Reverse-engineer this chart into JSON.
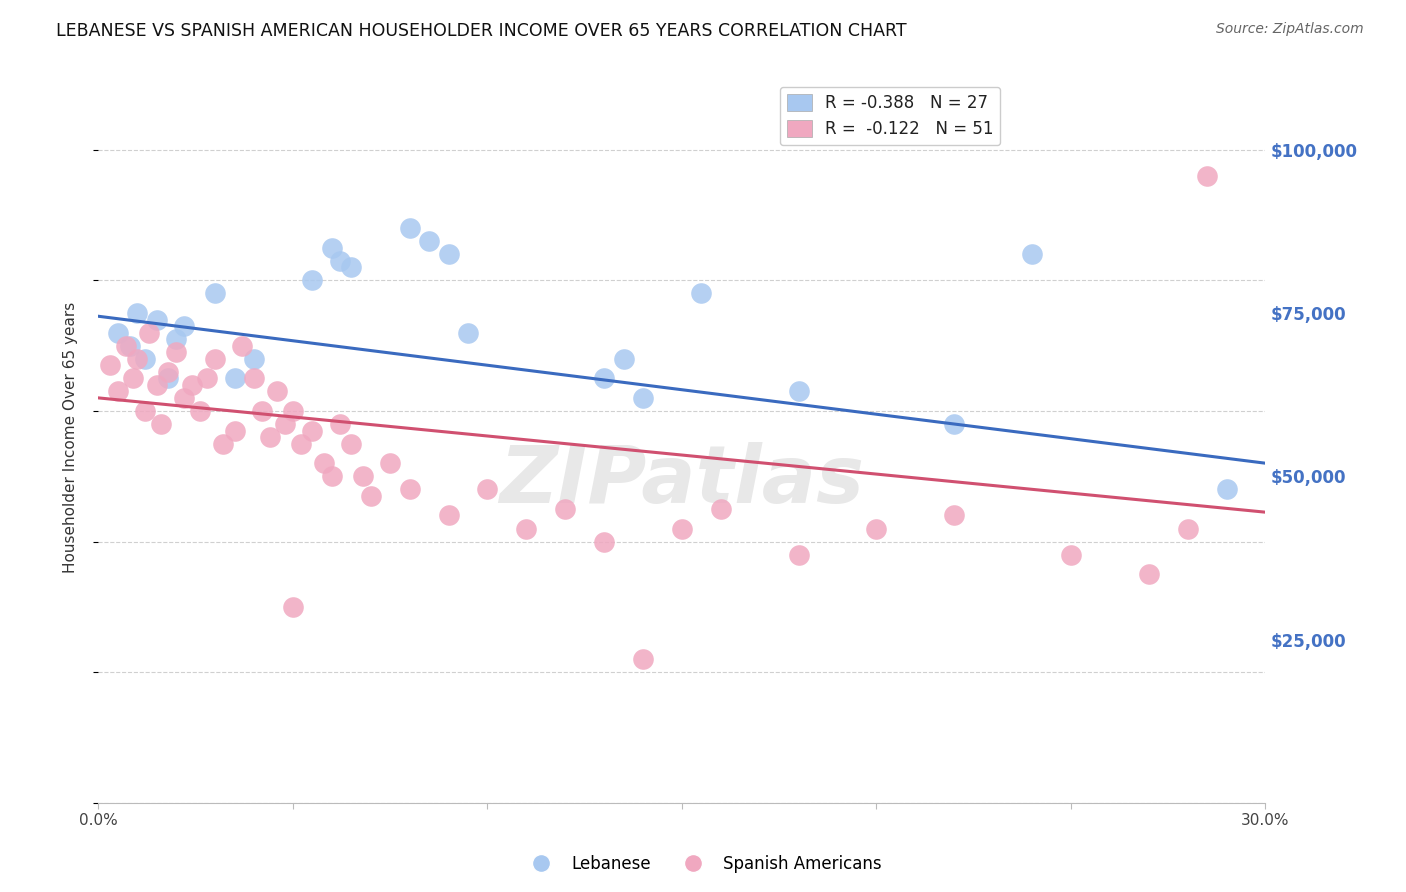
{
  "title": "LEBANESE VS SPANISH AMERICAN HOUSEHOLDER INCOME OVER 65 YEARS CORRELATION CHART",
  "source": "Source: ZipAtlas.com",
  "ylabel": "Householder Income Over 65 years",
  "watermark": "ZIPatlas",
  "legend_entries": [
    {
      "label": "Lebanese",
      "color": "#a8c8f0",
      "line_color": "#3a6abf",
      "R": -0.388,
      "N": 27
    },
    {
      "label": "Spanish Americans",
      "color": "#f0a8c0",
      "line_color": "#d05070",
      "R": -0.122,
      "N": 51
    }
  ],
  "ytick_values": [
    25000,
    50000,
    75000,
    100000
  ],
  "ylim": [
    0,
    112000
  ],
  "xlim": [
    0.0,
    0.3
  ],
  "axis_label_color": "#4472c4",
  "grid_color": "#d0d0d0",
  "background_color": "#ffffff",
  "title_fontsize": 12.5,
  "source_fontsize": 10,
  "legend_fontsize": 12,
  "ylabel_fontsize": 11,
  "ytick_fontsize": 12,
  "blue_points_x": [
    0.005,
    0.008,
    0.01,
    0.012,
    0.015,
    0.018,
    0.02,
    0.022,
    0.03,
    0.035,
    0.04,
    0.055,
    0.06,
    0.062,
    0.065,
    0.08,
    0.085,
    0.09,
    0.095,
    0.13,
    0.135,
    0.14,
    0.155,
    0.18,
    0.22,
    0.24,
    0.29
  ],
  "blue_points_y": [
    72000,
    70000,
    75000,
    68000,
    74000,
    65000,
    71000,
    73000,
    78000,
    65000,
    68000,
    80000,
    85000,
    83000,
    82000,
    88000,
    86000,
    84000,
    72000,
    65000,
    68000,
    62000,
    78000,
    63000,
    58000,
    84000,
    48000
  ],
  "pink_points_x": [
    0.003,
    0.005,
    0.007,
    0.009,
    0.01,
    0.012,
    0.013,
    0.015,
    0.016,
    0.018,
    0.02,
    0.022,
    0.024,
    0.026,
    0.028,
    0.03,
    0.032,
    0.035,
    0.037,
    0.04,
    0.042,
    0.044,
    0.046,
    0.048,
    0.05,
    0.052,
    0.055,
    0.058,
    0.06,
    0.062,
    0.065,
    0.068,
    0.07,
    0.075,
    0.08,
    0.09,
    0.1,
    0.11,
    0.12,
    0.13,
    0.15,
    0.16,
    0.18,
    0.2,
    0.22,
    0.25,
    0.27,
    0.28,
    0.285,
    0.05,
    0.14
  ],
  "pink_points_y": [
    67000,
    63000,
    70000,
    65000,
    68000,
    60000,
    72000,
    64000,
    58000,
    66000,
    69000,
    62000,
    64000,
    60000,
    65000,
    68000,
    55000,
    57000,
    70000,
    65000,
    60000,
    56000,
    63000,
    58000,
    60000,
    55000,
    57000,
    52000,
    50000,
    58000,
    55000,
    50000,
    47000,
    52000,
    48000,
    44000,
    48000,
    42000,
    45000,
    40000,
    42000,
    45000,
    38000,
    42000,
    44000,
    38000,
    35000,
    42000,
    96000,
    30000,
    22000
  ]
}
